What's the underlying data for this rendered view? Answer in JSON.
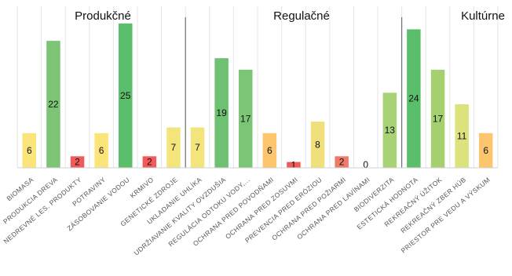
{
  "chart_data": {
    "type": "bar",
    "title": "",
    "xlabel": "",
    "ylabel": "",
    "ylim": [
      0,
      25
    ],
    "grid": "vertical",
    "groups": [
      {
        "label": "Produkčné",
        "start": 0,
        "end": 6
      },
      {
        "label": "Regulačné",
        "start": 7,
        "end": 15
      },
      {
        "label": "Kultúrne",
        "start": 16,
        "end": 19
      }
    ],
    "categories": [
      "BIOMASA",
      "PRODUKCIA DREVA",
      "NEDREVNÉ LES. PRODUKTY",
      "POTRAVINY",
      "ZÁSOBOVANIE VODOU",
      "KRMIVO",
      "GENETICKÉ ZDROJE",
      "UKLADANIE UHLÍKA",
      "UDRŽIAVANIE KVALITY OVZDUŠIA",
      "REGULÁCIA ODTOKU VODY,...",
      "OCHRANA PRED POVODŇAMI",
      "OCHRANA PRED ZOSUVMI",
      "PREVENCIA PRED ERÓZIOU",
      "OCHRANA PRED POŽIARMI",
      "OCHRANA PRED LAVÍNAMI",
      "BIODIVERZITA",
      "ESTETICKÁ HODNOTA",
      "REKREAČNÝ ÚŽITOK",
      "REKREAČNÝ ZBER HÚB",
      "PRIESTOR PRE VEDU A VÝSKUM"
    ],
    "values": [
      6,
      22,
      2,
      6,
      25,
      2,
      7,
      7,
      19,
      17,
      6,
      1,
      8,
      2,
      0,
      13,
      24,
      17,
      11,
      6
    ],
    "colors": [
      "#fbe57a",
      "#7cc576",
      "#f05a5a",
      "#fbe57a",
      "#5bbe6a",
      "#f05a5a",
      "#f3e47c",
      "#f3e47c",
      "#6dc170",
      "#7cc576",
      "#fcc56e",
      "#ef5b57",
      "#f0e07c",
      "#f07a6a",
      "#cccccc",
      "#a8d276",
      "#5bbe6a",
      "#a4d070",
      "#dde27c",
      "#fcc56e"
    ]
  }
}
